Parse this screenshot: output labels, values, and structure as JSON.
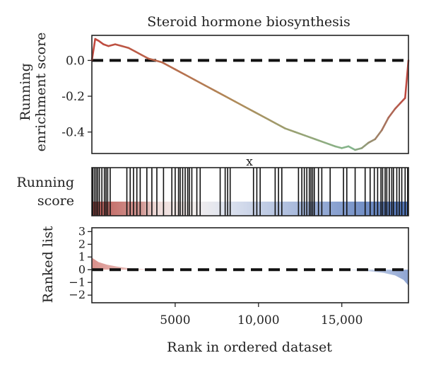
{
  "chart_data": {
    "type": "line",
    "title": "Steroid hormone biosynthesis",
    "xlabel": "Rank in ordered dataset",
    "xlim": [
      0,
      19000
    ],
    "x_ticks": [
      5000,
      10000,
      15000
    ],
    "x_tick_labels": [
      "5000",
      "10,000",
      "15,000"
    ],
    "panels": {
      "enrichment": {
        "ylabel_lines": [
          "Running",
          "enrichment score"
        ],
        "ylim": [
          -0.52,
          0.14
        ],
        "y_ticks": [
          0.0,
          -0.2,
          -0.4
        ],
        "y_tick_labels": [
          "0.0",
          "-0.2",
          "-0.4"
        ],
        "zero_line": true,
        "series": {
          "x": [
            0,
            200,
            400,
            700,
            1000,
            1400,
            1800,
            2200,
            2600,
            3000,
            3400,
            3800,
            4200,
            4600,
            5000,
            5600,
            6200,
            6800,
            7400,
            8000,
            8600,
            9200,
            9800,
            10400,
            11000,
            11600,
            12200,
            12800,
            13400,
            14000,
            14600,
            15000,
            15400,
            15800,
            16200,
            16600,
            17000,
            17400,
            17800,
            18200,
            18500,
            18800,
            19000
          ],
          "y": [
            0.0,
            0.12,
            0.11,
            0.09,
            0.08,
            0.09,
            0.08,
            0.07,
            0.05,
            0.03,
            0.01,
            0.0,
            -0.01,
            -0.03,
            -0.05,
            -0.08,
            -0.11,
            -0.14,
            -0.17,
            -0.2,
            -0.23,
            -0.26,
            -0.29,
            -0.32,
            -0.35,
            -0.38,
            -0.4,
            -0.42,
            -0.44,
            -0.46,
            -0.48,
            -0.49,
            -0.48,
            -0.5,
            -0.49,
            -0.46,
            -0.44,
            -0.39,
            -0.32,
            -0.27,
            -0.24,
            -0.21,
            0.0
          ]
        }
      },
      "hits": {
        "ylabel_lines": [
          "Running",
          "score"
        ],
        "marker_label": "x",
        "positions": [
          50,
          150,
          250,
          350,
          450,
          600,
          750,
          850,
          950,
          1100,
          2100,
          2300,
          2500,
          2700,
          2900,
          3300,
          3600,
          3900,
          4300,
          4800,
          5000,
          5200,
          5300,
          5450,
          5600,
          5750,
          5850,
          6000,
          6300,
          6500,
          7700,
          8000,
          8150,
          8300,
          9700,
          9900,
          10100,
          11000,
          11200,
          11400,
          12400,
          12600,
          12750,
          12900,
          13050,
          13150,
          13250,
          13350,
          13600,
          13800,
          14300,
          15100,
          15300,
          15800,
          16400,
          16700,
          16950,
          17150,
          17350,
          17450,
          17600,
          17700,
          17850,
          18000,
          18100,
          18300,
          18450,
          18600,
          18800,
          18950
        ]
      },
      "ranked_list": {
        "ylabel": "Ranked list",
        "ylim": [
          -2.6,
          3.3
        ],
        "y_ticks": [
          3,
          2,
          1,
          0,
          -1,
          -2
        ],
        "y_tick_labels": [
          "3",
          "2",
          "1",
          "0",
          "−1",
          "−2"
        ],
        "zero_line": true
      }
    },
    "colors": {
      "positive": "#c0463e",
      "middle": "#f0e8e6",
      "negative": "#4e72b4",
      "curve_start": "#c0463e",
      "curve_mid": "#b08a58",
      "curve_low": "#84b68c",
      "curve_end": "#c0463e"
    }
  }
}
